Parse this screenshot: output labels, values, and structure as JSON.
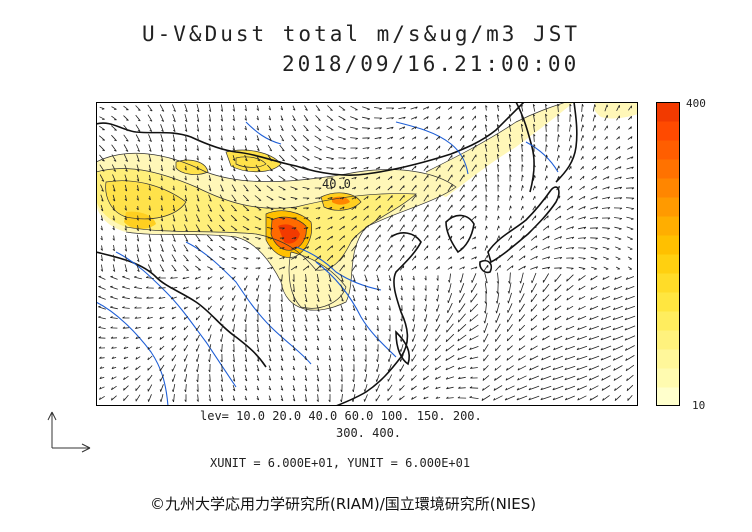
{
  "header": {
    "title_line1": "U-V&Dust total m/s&ug/m3 JST",
    "title_line2": "2018/09/16.21:00:00"
  },
  "map": {
    "contour_label": "40.0",
    "colors": {
      "background": "#ffffff",
      "coastline": "#111111",
      "rivers": "#1f5fd6",
      "wind_vectors": "#222222",
      "contour_lines": "#333333"
    }
  },
  "colorbar": {
    "max_label": "400",
    "min_label": "10",
    "colors": [
      "#ffffcc",
      "#fffbb0",
      "#fff79a",
      "#fff27d",
      "#ffed5e",
      "#ffe640",
      "#ffdc28",
      "#ffd010",
      "#ffc000",
      "#ffae00",
      "#ff9a00",
      "#ff8600",
      "#ff7200",
      "#ff5e00",
      "#ff4a00",
      "#f23a00"
    ]
  },
  "legend": {
    "levels_line1": "lev= 10.0 20.0 40.0 60.0 100. 150. 200.",
    "levels_line2": "300. 400.",
    "units": "XUNIT = 6.000E+01, YUNIT = 6.000E+01"
  },
  "footer": {
    "copyright": "©九州大学応用力学研究所(RIAM)/国立環境研究所(NIES)"
  }
}
